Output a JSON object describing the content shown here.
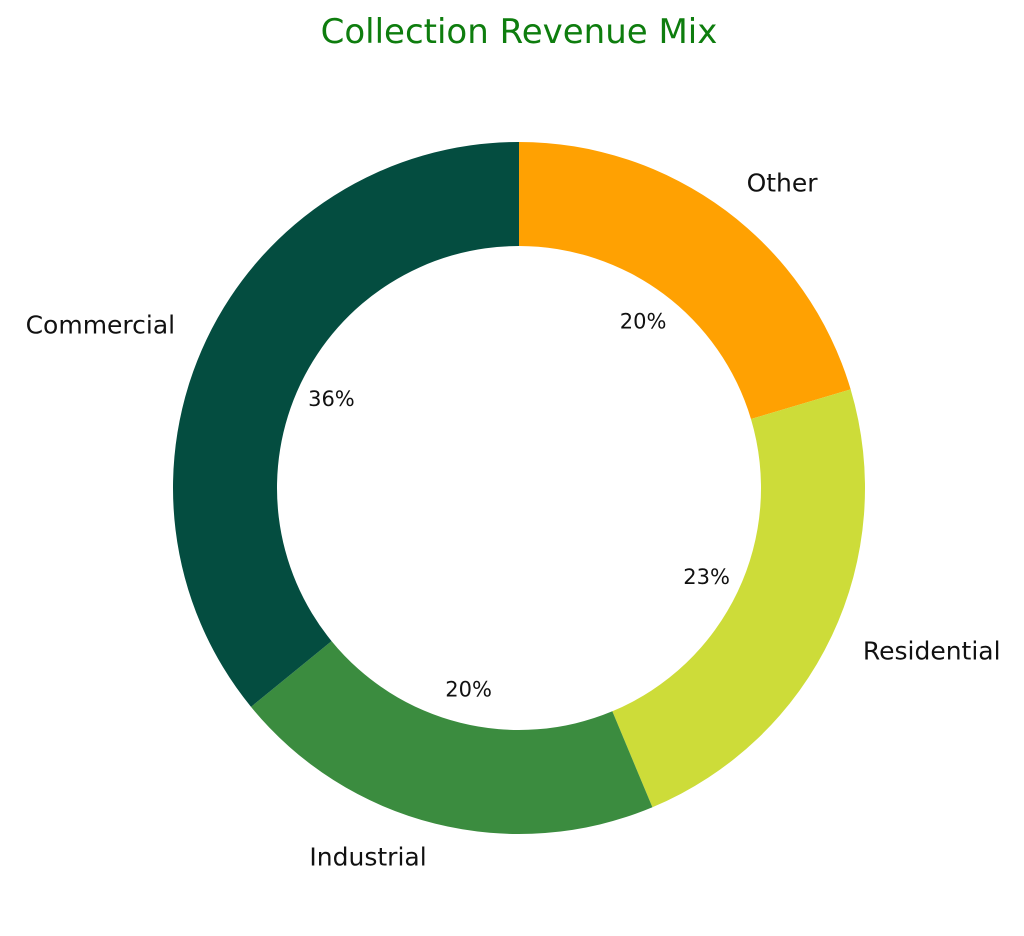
{
  "chart_data": {
    "type": "pie",
    "title": "Collection Revenue Mix",
    "categories": [
      "Other",
      "Residential",
      "Industrial",
      "Commercial"
    ],
    "values": [
      20.4,
      23.3,
      20.4,
      35.9
    ],
    "percent_labels": [
      "20%",
      "23%",
      "20%",
      "36%"
    ],
    "colors": [
      "#ffa102",
      "#cddc39",
      "#3b8c3f",
      "#044d40"
    ],
    "donut": true,
    "start_angle_deg": 90,
    "direction": "clockwise"
  }
}
